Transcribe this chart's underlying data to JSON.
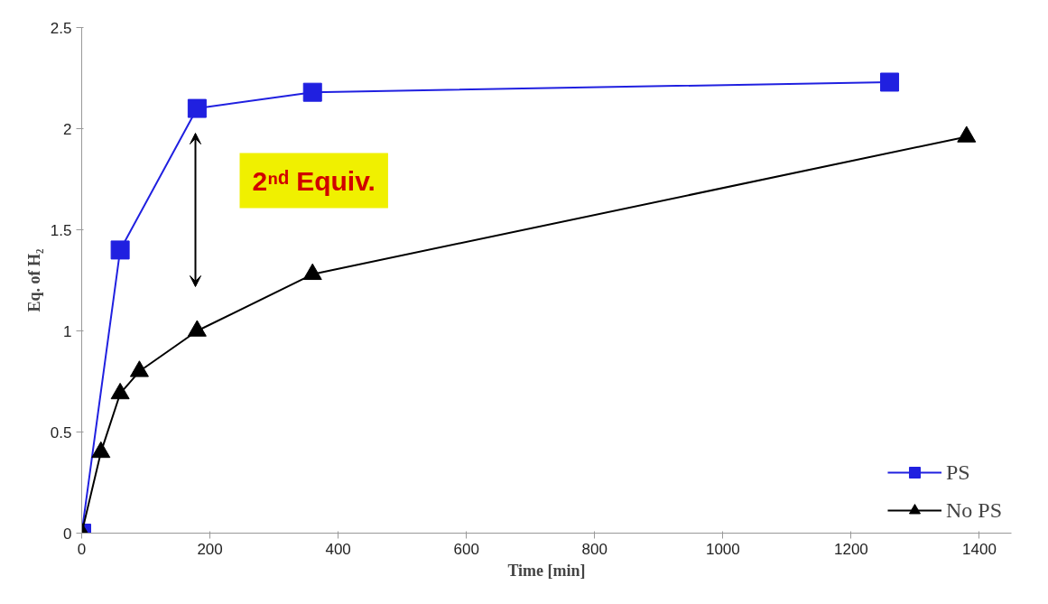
{
  "chart_data": {
    "type": "line",
    "xlabel": "Time [min]",
    "ylabel": "Eq. of H₂",
    "xlim": [
      0,
      1450
    ],
    "xticks": [
      0,
      200,
      400,
      600,
      800,
      1000,
      1200,
      1400
    ],
    "ylim": [
      0,
      2.5
    ],
    "yticks": [
      0,
      0.5,
      1,
      1.5,
      2,
      2.5
    ],
    "grid": false,
    "legend": "bottom right",
    "series": [
      {
        "name": "PS",
        "color": "#2020e0",
        "marker": "square",
        "x": [
          0,
          60,
          180,
          360,
          1260
        ],
        "values": [
          0,
          1.4,
          2.1,
          2.18,
          2.23
        ]
      },
      {
        "name": "No PS",
        "color": "#000000",
        "marker": "triangle",
        "x": [
          0,
          30,
          60,
          90,
          180,
          360,
          1380
        ],
        "values": [
          0,
          0.4,
          0.69,
          0.8,
          1.0,
          1.28,
          1.96
        ]
      }
    ],
    "annotations": [
      "2ⁿᵈ Equiv."
    ]
  }
}
